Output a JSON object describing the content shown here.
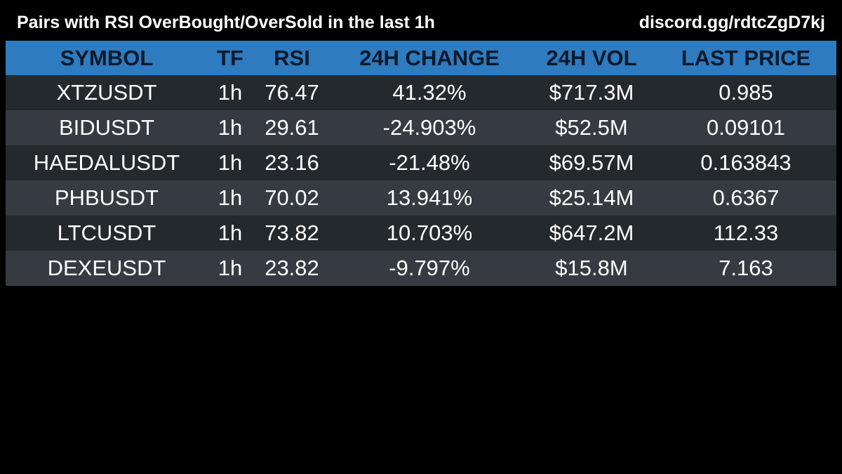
{
  "header": {
    "title": "Pairs with RSI OverBought/OverSold in the last 1h",
    "link": "discord.gg/rdtcZgD7kj"
  },
  "colors": {
    "background": "#000000",
    "header_row": "#2f7bbf",
    "header_text": "#0b1a2b",
    "row_odd": "#24292e",
    "row_even": "#353b41",
    "text": "#ffffff"
  },
  "table": {
    "columns": [
      "SYMBOL",
      "TF",
      "RSI",
      "24H CHANGE",
      "24H VOL",
      "LAST PRICE"
    ],
    "rows": [
      [
        "XTZUSDT",
        "1h",
        "76.47",
        "41.32%",
        "$717.3M",
        "0.985"
      ],
      [
        "BIDUSDT",
        "1h",
        "29.61",
        "-24.903%",
        "$52.5M",
        "0.09101"
      ],
      [
        "HAEDALUSDT",
        "1h",
        "23.16",
        "-21.48%",
        "$69.57M",
        "0.163843"
      ],
      [
        "PHBUSDT",
        "1h",
        "70.02",
        "13.941%",
        "$25.14M",
        "0.6367"
      ],
      [
        "LTCUSDT",
        "1h",
        "73.82",
        "10.703%",
        "$647.2M",
        "112.33"
      ],
      [
        "DEXEUSDT",
        "1h",
        "23.82",
        "-9.797%",
        "$15.8M",
        "7.163"
      ]
    ]
  }
}
